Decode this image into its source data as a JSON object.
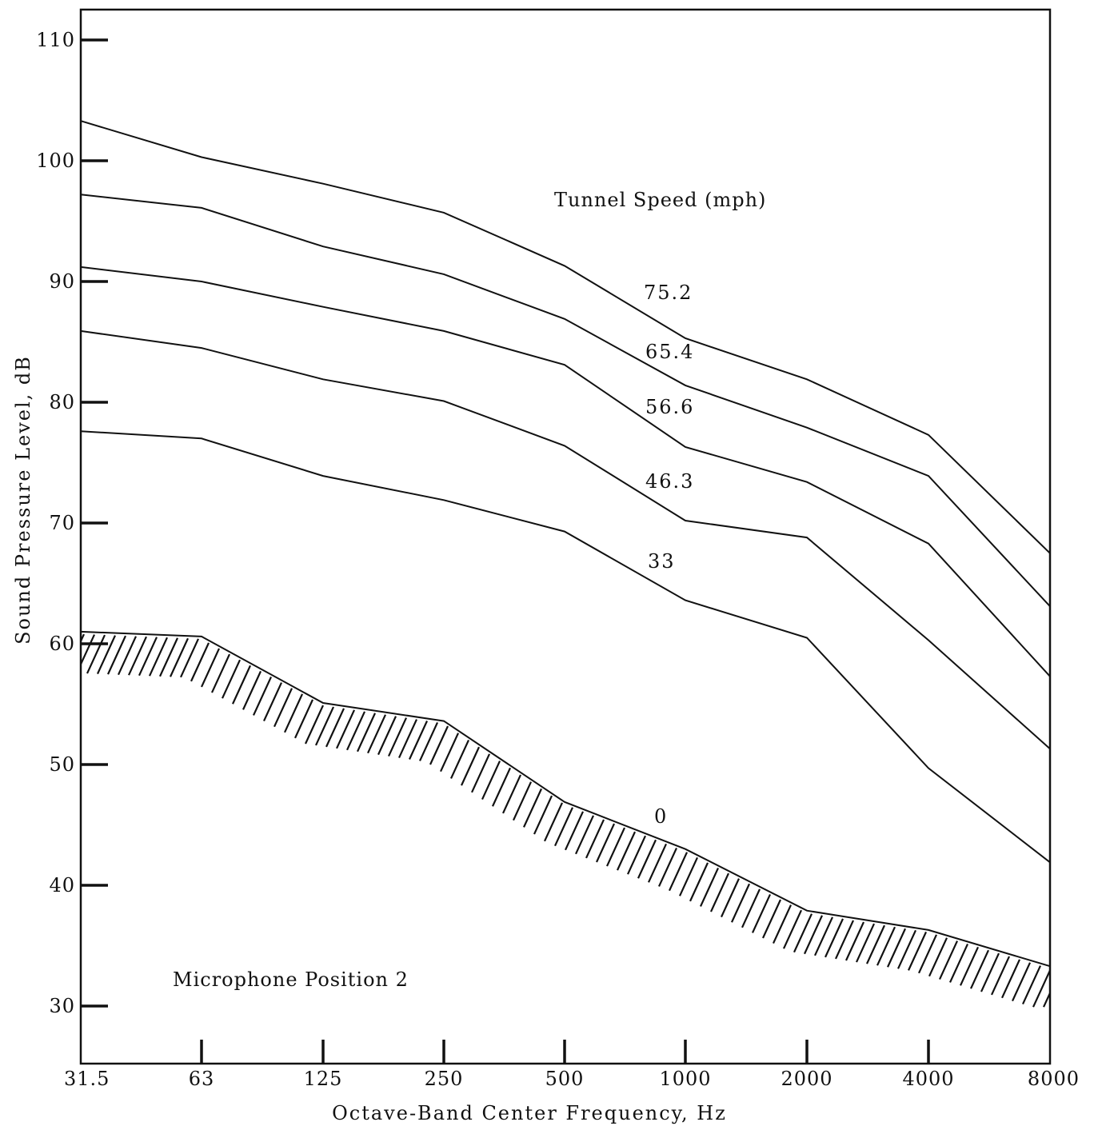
{
  "chart_data": {
    "type": "line",
    "title": "",
    "xlabel": "Octave-Band Center Frequency, Hz",
    "ylabel": "Sound Pressure Level, dB",
    "categories": [
      "31.5",
      "63",
      "125",
      "250",
      "500",
      "1000",
      "2000",
      "4000",
      "8000"
    ],
    "y_ticks": [
      "30",
      "40",
      "50",
      "60",
      "70",
      "80",
      "90",
      "100",
      "110"
    ],
    "ylim": [
      25,
      112.5
    ],
    "grid": false,
    "legend_title": "Tunnel Speed (mph)",
    "annotation": "Microphone Position 2",
    "series": [
      {
        "name": "75.2",
        "values": [
          103.3,
          100.3,
          98.1,
          95.7,
          91.3,
          85.3,
          81.9,
          77.3,
          67.5
        ]
      },
      {
        "name": "65.4",
        "values": [
          97.2,
          96.1,
          92.9,
          90.6,
          86.9,
          81.4,
          77.9,
          73.9,
          63.1
        ]
      },
      {
        "name": "56.6",
        "values": [
          91.2,
          90.0,
          87.9,
          85.9,
          83.1,
          76.3,
          73.4,
          68.3,
          57.3
        ]
      },
      {
        "name": "46.3",
        "values": [
          85.9,
          84.5,
          81.9,
          80.1,
          76.4,
          70.2,
          68.8,
          60.3,
          51.3
        ]
      },
      {
        "name": "33",
        "values": [
          77.6,
          77.0,
          73.9,
          71.9,
          69.3,
          63.6,
          60.5,
          49.7,
          41.9
        ]
      },
      {
        "name": "0",
        "values": [
          61.0,
          60.6,
          55.1,
          53.6,
          46.9,
          43.0,
          37.9,
          36.3,
          33.3
        ]
      }
    ]
  }
}
